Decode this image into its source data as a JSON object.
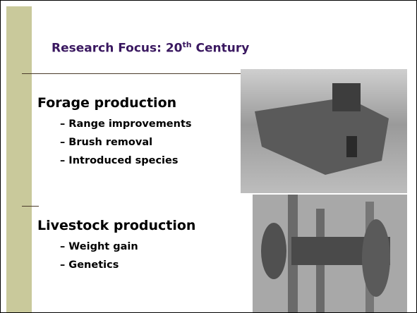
{
  "slide": {
    "title": {
      "text": "Research Focus: 20",
      "superscript": "th",
      "suffix": " Century"
    },
    "sections": [
      {
        "heading": "Forage production",
        "items": [
          "– Range improvements",
          "– Brush removal",
          "– Introduced species"
        ]
      },
      {
        "heading": "Livestock production",
        "items": [
          "– Weight gain",
          "– Genetics"
        ]
      }
    ]
  }
}
